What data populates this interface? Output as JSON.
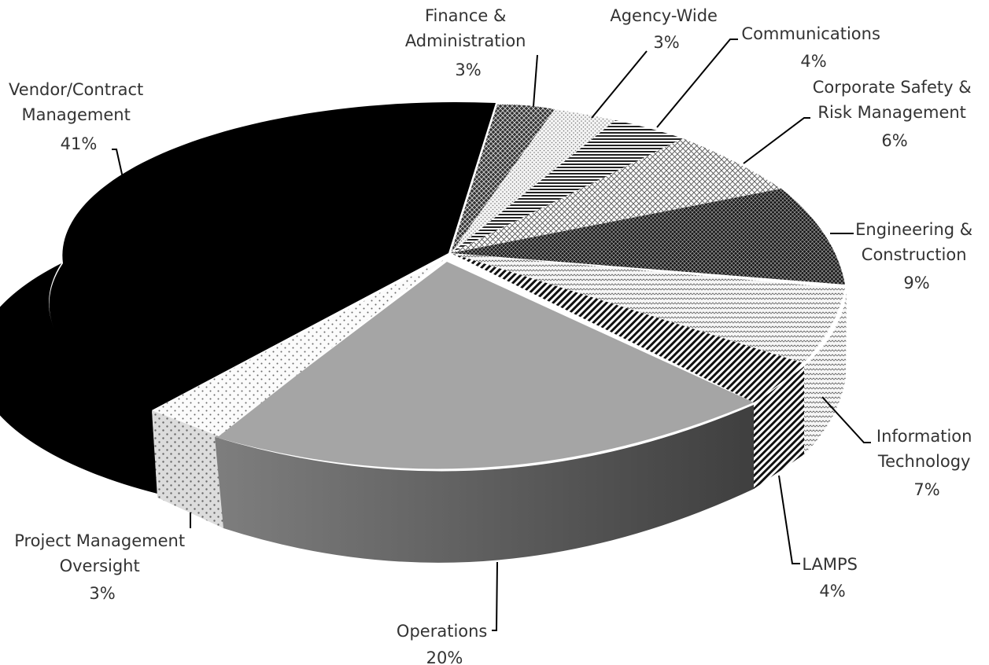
{
  "chart_data": {
    "type": "pie",
    "style": "3d-exploded-tilted",
    "title": "",
    "units": "percent",
    "slices": [
      {
        "key": "vendor",
        "label_lines": [
          "Vendor/Contract",
          "Management"
        ],
        "pct_label": "41%",
        "value": 41,
        "fill": "solid-black"
      },
      {
        "key": "finance",
        "label_lines": [
          "Finance &",
          "Administration"
        ],
        "pct_label": "3%",
        "value": 3,
        "fill": "dark-crosshatch"
      },
      {
        "key": "agency",
        "label_lines": [
          "Agency-Wide"
        ],
        "pct_label": "3%",
        "value": 3,
        "fill": "light-dots"
      },
      {
        "key": "communications",
        "label_lines": [
          "Communications"
        ],
        "pct_label": "4%",
        "value": 4,
        "fill": "horizontal-stripes"
      },
      {
        "key": "safety",
        "label_lines": [
          "Corporate Safety &",
          "Risk Management"
        ],
        "pct_label": "6%",
        "value": 6,
        "fill": "light-crosshatch"
      },
      {
        "key": "engineering",
        "label_lines": [
          "Engineering &",
          "Construction"
        ],
        "pct_label": "9%",
        "value": 9,
        "fill": "dark-diagonal-crosshatch"
      },
      {
        "key": "it",
        "label_lines": [
          "Information",
          "Technology"
        ],
        "pct_label": "7%",
        "value": 7,
        "fill": "light-zigzag"
      },
      {
        "key": "lamps",
        "label_lines": [
          "LAMPS"
        ],
        "pct_label": "4%",
        "value": 4,
        "fill": "diagonal-stripes"
      },
      {
        "key": "operations",
        "label_lines": [
          "Operations"
        ],
        "pct_label": "20%",
        "value": 20,
        "fill": "solid-gray"
      },
      {
        "key": "pmo",
        "label_lines": [
          "Project Management",
          "Oversight"
        ],
        "pct_label": "3%",
        "value": 3,
        "fill": "sparse-dots"
      }
    ]
  }
}
